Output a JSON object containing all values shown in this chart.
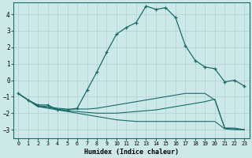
{
  "background_color": "#cce8e8",
  "grid_color": "#b0d0d0",
  "line_color": "#1a6b6b",
  "xlabel": "Humidex (Indice chaleur)",
  "xlim": [
    -0.5,
    23.5
  ],
  "ylim": [
    -3.5,
    4.7
  ],
  "yticks": [
    -3,
    -2,
    -1,
    0,
    1,
    2,
    3,
    4
  ],
  "xticks": [
    0,
    1,
    2,
    3,
    4,
    5,
    6,
    7,
    8,
    9,
    10,
    11,
    12,
    13,
    14,
    15,
    16,
    17,
    18,
    19,
    20,
    21,
    22,
    23
  ],
  "line1_x": [
    0,
    1,
    2,
    3,
    4,
    5,
    6,
    7,
    8,
    9,
    10,
    11,
    12,
    13,
    14,
    15,
    16,
    17,
    18,
    19,
    20,
    21,
    22,
    23
  ],
  "line1_y": [
    -0.8,
    -1.2,
    -1.5,
    -1.5,
    -1.8,
    -1.8,
    -1.7,
    -0.6,
    0.5,
    1.7,
    2.8,
    3.2,
    3.5,
    4.5,
    4.3,
    4.4,
    3.8,
    2.1,
    1.2,
    0.8,
    0.7,
    -0.1,
    0.0,
    -0.35
  ],
  "line2_x": [
    0,
    1,
    2,
    3,
    4,
    5,
    6,
    7,
    8,
    9,
    10,
    11,
    12,
    13,
    14,
    15,
    16,
    17,
    18,
    19,
    20,
    21,
    22,
    23
  ],
  "line2_y": [
    -0.8,
    -1.2,
    -1.55,
    -1.6,
    -1.7,
    -1.75,
    -1.75,
    -1.75,
    -1.7,
    -1.6,
    -1.5,
    -1.4,
    -1.3,
    -1.2,
    -1.1,
    -1.0,
    -0.9,
    -0.8,
    -0.8,
    -0.8,
    -1.2,
    -2.9,
    -2.9,
    -3.0
  ],
  "line3_x": [
    0,
    1,
    2,
    3,
    4,
    5,
    6,
    7,
    8,
    9,
    10,
    11,
    12,
    13,
    14,
    15,
    16,
    17,
    18,
    19,
    20,
    21,
    22,
    23
  ],
  "line3_y": [
    -0.8,
    -1.2,
    -1.6,
    -1.65,
    -1.75,
    -1.85,
    -1.9,
    -1.95,
    -2.0,
    -2.0,
    -2.0,
    -1.95,
    -1.9,
    -1.85,
    -1.8,
    -1.7,
    -1.6,
    -1.5,
    -1.4,
    -1.3,
    -1.15,
    -2.9,
    -2.95,
    -3.0
  ],
  "line4_x": [
    0,
    1,
    2,
    3,
    4,
    5,
    6,
    7,
    8,
    9,
    10,
    11,
    12,
    13,
    14,
    15,
    16,
    17,
    18,
    19,
    20,
    21,
    22,
    23
  ],
  "line4_y": [
    -0.8,
    -1.2,
    -1.6,
    -1.7,
    -1.8,
    -1.9,
    -2.0,
    -2.1,
    -2.2,
    -2.3,
    -2.4,
    -2.45,
    -2.5,
    -2.5,
    -2.5,
    -2.5,
    -2.5,
    -2.5,
    -2.5,
    -2.5,
    -2.5,
    -2.95,
    -3.0,
    -3.0
  ]
}
